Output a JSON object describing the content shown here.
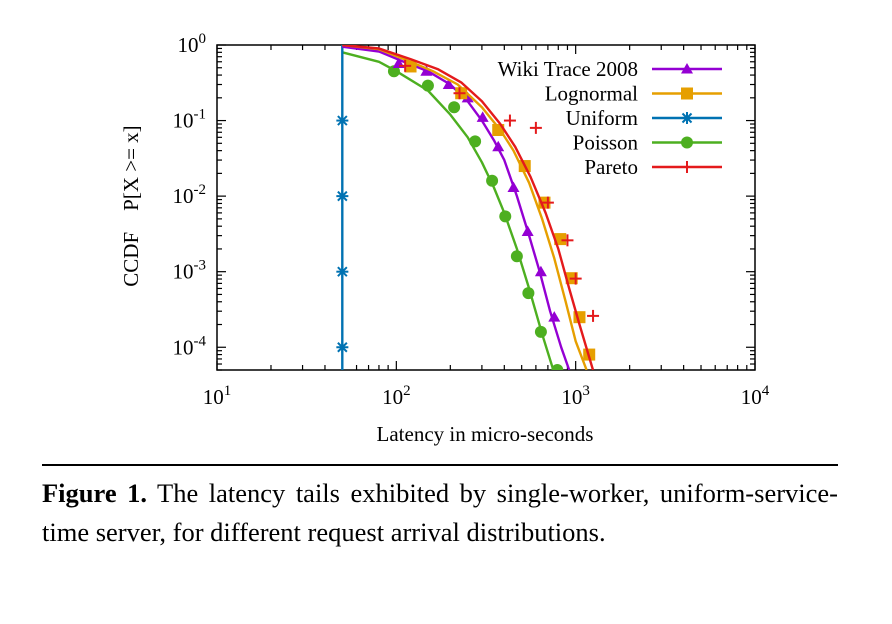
{
  "chart_data": {
    "type": "line",
    "title": "",
    "xlabel": "Latency in micro-seconds",
    "ylabel": "CCDF    P[X >= x]",
    "xscale": "log",
    "yscale": "log",
    "xlim": [
      10,
      10000
    ],
    "ylim": [
      5e-05,
      1
    ],
    "x_ticks": [
      {
        "value": 10,
        "base": "10",
        "exp": "1"
      },
      {
        "value": 100,
        "base": "10",
        "exp": "2"
      },
      {
        "value": 1000,
        "base": "10",
        "exp": "3"
      },
      {
        "value": 10000,
        "base": "10",
        "exp": "4"
      }
    ],
    "y_ticks": [
      {
        "value": 1,
        "base": "10",
        "exp": "0"
      },
      {
        "value": 0.1,
        "base": "10",
        "exp": "-1"
      },
      {
        "value": 0.01,
        "base": "10",
        "exp": "-2"
      },
      {
        "value": 0.001,
        "base": "10",
        "exp": "-3"
      },
      {
        "value": 0.0001,
        "base": "10",
        "exp": "-4"
      }
    ],
    "grid": false,
    "legend_position": "top-right",
    "series": [
      {
        "name": "Wiki Trace 2008",
        "color": "#9400D3",
        "marker": "triangle",
        "points": [
          [
            50,
            0.95
          ],
          [
            80,
            0.82
          ],
          [
            110,
            0.6
          ],
          [
            150,
            0.45
          ],
          [
            200,
            0.3
          ],
          [
            250,
            0.18
          ],
          [
            300,
            0.1
          ],
          [
            350,
            0.055
          ],
          [
            400,
            0.03
          ],
          [
            470,
            0.01
          ],
          [
            550,
            0.003
          ],
          [
            630,
            0.001
          ],
          [
            720,
            0.0003
          ],
          [
            830,
            0.0001
          ],
          [
            920,
            5e-05
          ]
        ],
        "markers": [
          [
            103,
            0.57
          ],
          [
            147,
            0.45
          ],
          [
            196,
            0.3
          ],
          [
            250,
            0.2
          ],
          [
            303,
            0.11
          ],
          [
            370,
            0.045
          ],
          [
            450,
            0.013
          ],
          [
            540,
            0.0034
          ],
          [
            640,
            0.001
          ],
          [
            760,
            0.00025
          ]
        ]
      },
      {
        "name": "Lognormal",
        "color": "#E69F00",
        "marker": "square",
        "points": [
          [
            50,
            1.0
          ],
          [
            80,
            0.88
          ],
          [
            120,
            0.6
          ],
          [
            160,
            0.45
          ],
          [
            220,
            0.3
          ],
          [
            300,
            0.15
          ],
          [
            380,
            0.075
          ],
          [
            450,
            0.04
          ],
          [
            550,
            0.015
          ],
          [
            650,
            0.005
          ],
          [
            760,
            0.0015
          ],
          [
            880,
            0.0004
          ],
          [
            1000,
            0.00012
          ],
          [
            1150,
            5e-05
          ]
        ],
        "markers": [
          [
            120,
            0.52
          ],
          [
            230,
            0.23
          ],
          [
            370,
            0.075
          ],
          [
            520,
            0.025
          ],
          [
            670,
            0.0082
          ],
          [
            820,
            0.0027
          ],
          [
            950,
            0.00082
          ],
          [
            1050,
            0.00025
          ],
          [
            1190,
            8e-05
          ]
        ]
      },
      {
        "name": "Uniform",
        "color": "#0072B2",
        "marker": "star",
        "points": [
          [
            50,
            1.0
          ],
          [
            50,
            5e-05
          ]
        ],
        "markers": [
          [
            50,
            0.1
          ],
          [
            50,
            0.01
          ],
          [
            50,
            0.001
          ],
          [
            50,
            0.0001
          ]
        ]
      },
      {
        "name": "Poisson",
        "color": "#4DAF20",
        "marker": "circle",
        "points": [
          [
            50,
            0.8
          ],
          [
            80,
            0.6
          ],
          [
            100,
            0.45
          ],
          [
            150,
            0.25
          ],
          [
            200,
            0.12
          ],
          [
            250,
            0.06
          ],
          [
            300,
            0.028
          ],
          [
            350,
            0.013
          ],
          [
            400,
            0.006
          ],
          [
            470,
            0.002
          ],
          [
            550,
            0.0006
          ],
          [
            650,
            0.00015
          ],
          [
            750,
            5e-05
          ]
        ],
        "markers": [
          [
            97,
            0.45
          ],
          [
            150,
            0.29
          ],
          [
            210,
            0.15
          ],
          [
            275,
            0.053
          ],
          [
            342,
            0.016
          ],
          [
            405,
            0.0054
          ],
          [
            470,
            0.0016
          ],
          [
            545,
            0.00052
          ],
          [
            640,
            0.00016
          ],
          [
            790,
            5e-05
          ]
        ]
      },
      {
        "name": "Pareto",
        "color": "#E41A1C",
        "marker": "plus",
        "points": [
          [
            50,
            1.0
          ],
          [
            80,
            0.9
          ],
          [
            120,
            0.65
          ],
          [
            170,
            0.48
          ],
          [
            230,
            0.32
          ],
          [
            300,
            0.18
          ],
          [
            380,
            0.09
          ],
          [
            460,
            0.045
          ],
          [
            560,
            0.018
          ],
          [
            680,
            0.006
          ],
          [
            800,
            0.002
          ],
          [
            920,
            0.0006
          ],
          [
            1050,
            0.0002
          ],
          [
            1250,
            5e-05
          ]
        ],
        "markers": [
          [
            112,
            0.53
          ],
          [
            225,
            0.23
          ],
          [
            430,
            0.1
          ],
          [
            600,
            0.08
          ],
          [
            700,
            0.0082
          ],
          [
            900,
            0.0026
          ],
          [
            1000,
            0.00081
          ],
          [
            1250,
            0.00026
          ]
        ]
      }
    ]
  },
  "caption": {
    "label": "Figure 1.",
    "text": " The latency tails exhibited by single-worker, uniform-service-time server, for different request arrival distributions."
  }
}
